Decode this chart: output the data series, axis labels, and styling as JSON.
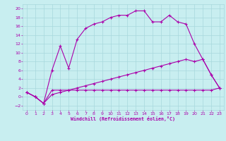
{
  "bg_color": "#c8eef0",
  "grid_color": "#a8d8dc",
  "line_color": "#aa00aa",
  "xlabel": "Windchill (Refroidissement éolien,°C)",
  "xlim": [
    -0.5,
    23.5
  ],
  "ylim": [
    -3,
    21
  ],
  "xticks": [
    0,
    1,
    2,
    3,
    4,
    5,
    6,
    7,
    8,
    9,
    10,
    11,
    12,
    13,
    14,
    15,
    16,
    17,
    18,
    19,
    20,
    21,
    22,
    23
  ],
  "yticks": [
    -2,
    0,
    2,
    4,
    6,
    8,
    10,
    12,
    14,
    16,
    18,
    20
  ],
  "line1_x": [
    0,
    1,
    2,
    3,
    4,
    5,
    6,
    7,
    8,
    9,
    10,
    11,
    12,
    13,
    14,
    15,
    16,
    17,
    18,
    19,
    20,
    21,
    22,
    23
  ],
  "line1_y": [
    1,
    0,
    -1.5,
    6,
    11.5,
    6.5,
    13,
    15.5,
    16.5,
    17,
    18,
    18.5,
    18.5,
    19.5,
    19.5,
    17,
    17,
    18.5,
    17,
    16.5,
    12,
    8.5,
    5,
    2
  ],
  "line2_x": [
    0,
    1,
    2,
    3,
    4,
    5,
    6,
    7,
    8,
    9,
    10,
    11,
    12,
    13,
    14,
    15,
    16,
    17,
    18,
    19,
    20,
    21,
    22,
    23
  ],
  "line2_y": [
    1,
    0,
    -1.5,
    1.5,
    1.5,
    1.5,
    1.5,
    1.5,
    1.5,
    1.5,
    1.5,
    1.5,
    1.5,
    1.5,
    1.5,
    1.5,
    1.5,
    1.5,
    1.5,
    1.5,
    1.5,
    1.5,
    1.5,
    2
  ],
  "line3_x": [
    0,
    1,
    2,
    3,
    4,
    5,
    6,
    7,
    8,
    9,
    10,
    11,
    12,
    13,
    14,
    15,
    16,
    17,
    18,
    19,
    20,
    21,
    22,
    23
  ],
  "line3_y": [
    1,
    0,
    -1.5,
    0.5,
    1.0,
    1.5,
    2.0,
    2.5,
    3.0,
    3.5,
    4.0,
    4.5,
    5.0,
    5.5,
    6.0,
    6.5,
    7.0,
    7.5,
    8.0,
    8.5,
    8.0,
    8.5,
    5,
    2
  ]
}
